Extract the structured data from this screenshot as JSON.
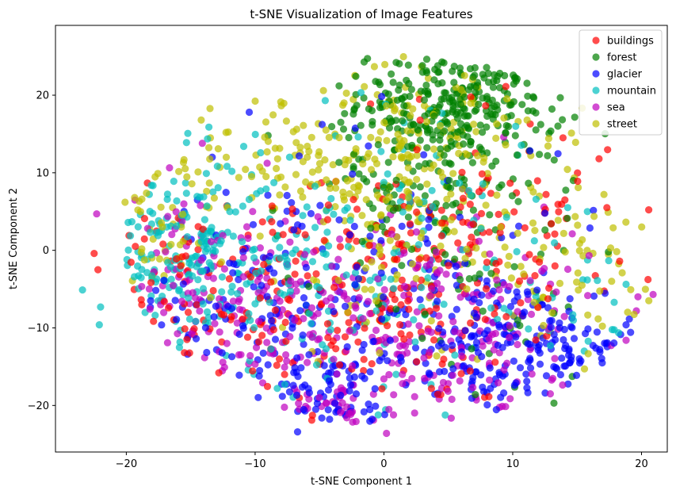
{
  "chart_data": {
    "type": "scatter",
    "title": "t-SNE Visualization of Image Features",
    "xlabel": "t-SNE Component 1",
    "ylabel": "t-SNE Component 2",
    "xlim": [
      -25.5,
      22
    ],
    "ylim": [
      -26,
      29
    ],
    "xticks": [
      -20,
      -10,
      0,
      10,
      20
    ],
    "yticks": [
      -20,
      -10,
      0,
      10,
      20
    ],
    "grid": false,
    "legend_position": "top-right",
    "marker_alpha": 0.7,
    "series": [
      {
        "name": "buildings",
        "color": "#ff0000",
        "clusters": [
          {
            "cx": 2,
            "cy": -5,
            "sx": 8,
            "sy": 8,
            "n": 150
          },
          {
            "cx": -10,
            "cy": -8,
            "sx": 7,
            "sy": 7,
            "n": 90
          },
          {
            "cx": 8,
            "cy": 5,
            "sx": 6,
            "sy": 8,
            "n": 80
          },
          {
            "cx": -18,
            "cy": -4,
            "sx": 3,
            "sy": 5,
            "n": 30
          }
        ],
        "points": [
          [
            16.7,
            11.8
          ],
          [
            -22.5,
            -0.4
          ],
          [
            -22.2,
            -2.5
          ],
          [
            -5.6,
            -21.9
          ],
          [
            18.3,
            -1.4
          ]
        ]
      },
      {
        "name": "forest",
        "color": "#008000",
        "clusters": [
          {
            "cx": 6,
            "cy": 19,
            "sx": 4,
            "sy": 3.5,
            "n": 260
          },
          {
            "cx": 3,
            "cy": 8,
            "sx": 5,
            "sy": 6,
            "n": 120
          },
          {
            "cx": 7,
            "cy": -5,
            "sx": 6,
            "sy": 7,
            "n": 40
          }
        ],
        "points": [
          [
            14.7,
            9.0
          ],
          [
            13.2,
            -19.7
          ],
          [
            7.1,
            -18.6
          ]
        ]
      },
      {
        "name": "glacier",
        "color": "#0000ff",
        "clusters": [
          {
            "cx": 8,
            "cy": -12,
            "sx": 5,
            "sy": 5,
            "n": 200
          },
          {
            "cx": -4,
            "cy": -19,
            "sx": 2.5,
            "sy": 2.5,
            "n": 60
          },
          {
            "cx": -12,
            "cy": -8,
            "sx": 6,
            "sy": 6,
            "n": 90
          },
          {
            "cx": 15,
            "cy": -12,
            "sx": 2,
            "sy": 2.5,
            "n": 40
          },
          {
            "cx": -2,
            "cy": 3,
            "sx": 8,
            "sy": 7,
            "n": 70
          }
        ],
        "points": [
          [
            -6.7,
            -23.4
          ],
          [
            18.8,
            -9.6
          ]
        ]
      },
      {
        "name": "mountain",
        "color": "#00bfbf",
        "clusters": [
          {
            "cx": -16,
            "cy": 0,
            "sx": 4,
            "sy": 6,
            "n": 180
          },
          {
            "cx": -4,
            "cy": -4,
            "sx": 6,
            "sy": 7,
            "n": 140
          },
          {
            "cx": 3,
            "cy": 10,
            "sx": 5,
            "sy": 6,
            "n": 40
          },
          {
            "cx": 14,
            "cy": -6,
            "sx": 3,
            "sy": 4,
            "n": 25
          }
        ],
        "points": [
          [
            -23.4,
            -5.1
          ],
          [
            -22.1,
            -9.6
          ],
          [
            -22.0,
            -7.3
          ],
          [
            15.8,
            5.0
          ]
        ]
      },
      {
        "name": "sea",
        "color": "#bf00bf",
        "clusters": [
          {
            "cx": 0,
            "cy": -8,
            "sx": 8,
            "sy": 7,
            "n": 200
          },
          {
            "cx": -14,
            "cy": -6,
            "sx": 6,
            "sy": 7,
            "n": 100
          },
          {
            "cx": 8,
            "cy": -14,
            "sx": 5,
            "sy": 5,
            "n": 70
          },
          {
            "cx": -4,
            "cy": -21,
            "sx": 3,
            "sy": 2,
            "n": 35
          }
        ],
        "points": [
          [
            -22.3,
            4.7
          ],
          [
            19.6,
            -7.8
          ],
          [
            18.8,
            -11.6
          ],
          [
            -14.1,
            13.8
          ],
          [
            9.3,
            14.6
          ],
          [
            0.2,
            -23.6
          ]
        ]
      },
      {
        "name": "street",
        "color": "#bfbf00",
        "clusters": [
          {
            "cx": -4,
            "cy": 11,
            "sx": 8,
            "sy": 5,
            "n": 170
          },
          {
            "cx": 5,
            "cy": 17,
            "sx": 6,
            "sy": 6,
            "n": 80
          },
          {
            "cx": 14,
            "cy": -3,
            "sx": 3,
            "sy": 5,
            "n": 50
          },
          {
            "cx": 2,
            "cy": 0,
            "sx": 7,
            "sy": 7,
            "n": 110
          },
          {
            "cx": -18,
            "cy": 3,
            "sx": 3,
            "sy": 4,
            "n": 30
          }
        ],
        "points": [
          [
            -20.1,
            6.2
          ],
          [
            18.5,
            -2.9
          ],
          [
            17.6,
            0.3
          ],
          [
            17.8,
            2.9
          ],
          [
            -4.7,
            20.6
          ],
          [
            -3.1,
            19.0
          ]
        ]
      }
    ]
  }
}
